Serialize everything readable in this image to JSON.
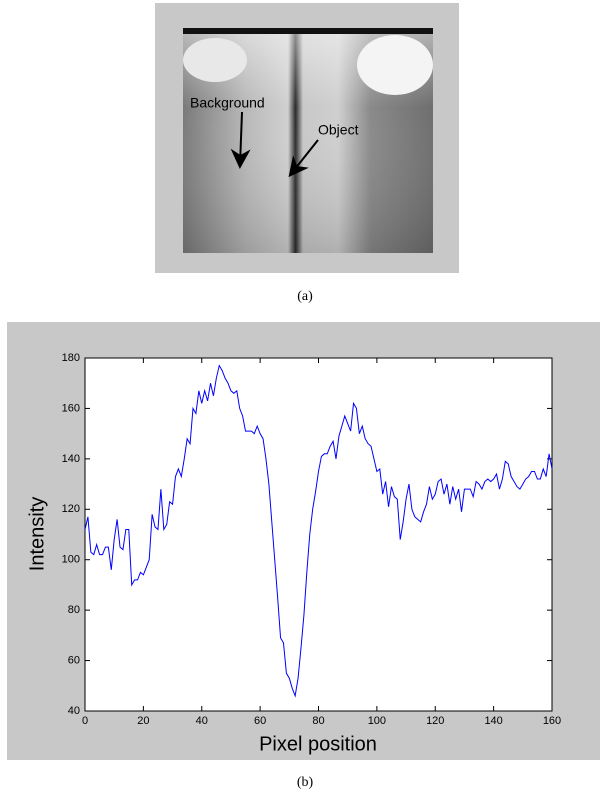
{
  "figure_a": {
    "labels": [
      "Background",
      "Object"
    ],
    "caption": "(a)"
  },
  "chart_data": {
    "type": "line",
    "caption": "(b)",
    "x_label": "Pixel position",
    "y_label": "Intensity",
    "xlim": [
      0,
      160
    ],
    "ylim": [
      40,
      180
    ],
    "xticks": [
      0,
      20,
      40,
      60,
      80,
      100,
      120,
      140,
      160
    ],
    "yticks": [
      40,
      60,
      80,
      100,
      120,
      140,
      160,
      180
    ],
    "color": "#0000ff",
    "x": [
      0,
      1,
      2,
      3,
      4,
      5,
      6,
      7,
      8,
      9,
      10,
      11,
      12,
      13,
      14,
      15,
      16,
      17,
      18,
      19,
      20,
      21,
      22,
      23,
      24,
      25,
      26,
      27,
      28,
      29,
      30,
      31,
      32,
      33,
      34,
      35,
      36,
      37,
      38,
      39,
      40,
      41,
      42,
      43,
      44,
      45,
      46,
      47,
      48,
      49,
      50,
      51,
      52,
      53,
      54,
      55,
      56,
      57,
      58,
      59,
      60,
      61,
      62,
      63,
      64,
      65,
      66,
      67,
      68,
      69,
      70,
      71,
      72,
      73,
      74,
      75,
      76,
      77,
      78,
      79,
      80,
      81,
      82,
      83,
      84,
      85,
      86,
      87,
      88,
      89,
      90,
      91,
      92,
      93,
      94,
      95,
      96,
      97,
      98,
      99,
      100,
      101,
      102,
      103,
      104,
      105,
      106,
      107,
      108,
      109,
      110,
      111,
      112,
      113,
      114,
      115,
      116,
      117,
      118,
      119,
      120,
      121,
      122,
      123,
      124,
      125,
      126,
      127,
      128,
      129,
      130,
      131,
      132,
      133,
      134,
      135,
      136,
      137,
      138,
      139,
      140,
      141,
      142,
      143,
      144,
      145,
      146,
      147,
      148,
      149,
      150,
      151,
      152,
      153,
      154,
      155,
      156,
      157,
      158,
      159,
      160
    ],
    "values": [
      112,
      117,
      103,
      102,
      106,
      102,
      102,
      105,
      105,
      96,
      108,
      116,
      105,
      104,
      112,
      112,
      90,
      92,
      92,
      95,
      94,
      97,
      100,
      118,
      113,
      112,
      128,
      112,
      114,
      123,
      122,
      133,
      136,
      133,
      140,
      148,
      146,
      160,
      158,
      167,
      162,
      167,
      163,
      170,
      165,
      172,
      177,
      175,
      172,
      170,
      167,
      166,
      167,
      160,
      157,
      151,
      151,
      151,
      150,
      153,
      150,
      148,
      140,
      130,
      115,
      100,
      85,
      69,
      67,
      55,
      53,
      49,
      46,
      53,
      65,
      78,
      95,
      110,
      120,
      127,
      135,
      141,
      142,
      142,
      145,
      147,
      140,
      149,
      153,
      157,
      154,
      151,
      162,
      160,
      150,
      153,
      148,
      146,
      145,
      140,
      135,
      136,
      126,
      131,
      121,
      129,
      125,
      124,
      108,
      115,
      124,
      130,
      120,
      117,
      116,
      115,
      119,
      122,
      129,
      124,
      126,
      131,
      132,
      126,
      130,
      122,
      129,
      124,
      128,
      119,
      128,
      128,
      128,
      125,
      131,
      130,
      128,
      131,
      132,
      131,
      132,
      134,
      128,
      132,
      139,
      138,
      133,
      131,
      129,
      128,
      130,
      132,
      133,
      135,
      135,
      132,
      132,
      136,
      133,
      142,
      136
    ]
  }
}
